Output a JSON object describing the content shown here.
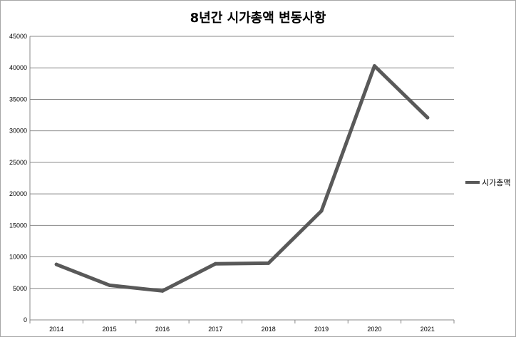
{
  "chart_data": {
    "type": "line",
    "title": "8년간 시가총액 변동사항",
    "xlabel": "",
    "ylabel": "",
    "categories": [
      "2014",
      "2015",
      "2016",
      "2017",
      "2018",
      "2019",
      "2020",
      "2021"
    ],
    "series": [
      {
        "name": "시가총액",
        "color": "#595959",
        "values": [
          8800,
          5500,
          4600,
          8900,
          9000,
          17300,
          40300,
          32100
        ]
      }
    ],
    "ylim": [
      0,
      45000
    ],
    "yticks": [
      "0",
      "5000",
      "10000",
      "15000",
      "20000",
      "25000",
      "30000",
      "35000",
      "40000",
      "45000"
    ],
    "grid": true,
    "legend_position": "right"
  }
}
